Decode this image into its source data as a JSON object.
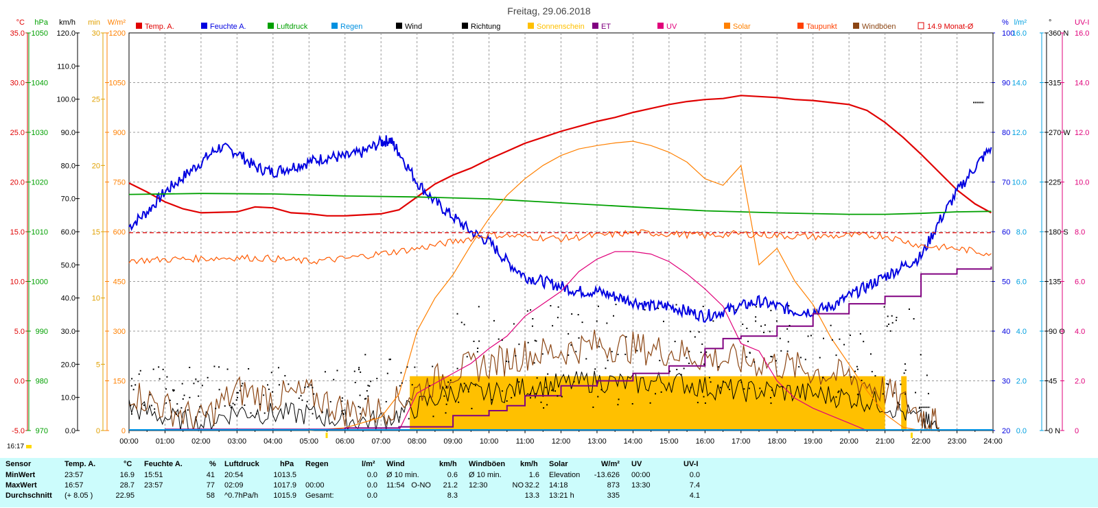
{
  "title": "Freitag, 29.06.2018",
  "clock": "16:17",
  "legend": [
    {
      "label": "Temp. A.",
      "color": "#e00000"
    },
    {
      "label": "Feuchte A.",
      "color": "#0000e0"
    },
    {
      "label": "Luftdruck",
      "color": "#00a000"
    },
    {
      "label": "Regen",
      "color": "#0090e0"
    },
    {
      "label": "Wind",
      "color": "#000000"
    },
    {
      "label": "Richtung",
      "color": "#000000"
    },
    {
      "label": "Sonnenschein",
      "color": "#ffc000"
    },
    {
      "label": "ET",
      "color": "#800080"
    },
    {
      "label": "UV",
      "color": "#e0007a"
    },
    {
      "label": "Solar",
      "color": "#ff8000"
    },
    {
      "label": "Taupunkt",
      "color": "#ff4000"
    },
    {
      "label": "Windböen",
      "color": "#8b4513"
    },
    {
      "label": "14.9 Monat-Ø",
      "color": "#e00000"
    }
  ],
  "axes": {
    "temp": {
      "unit": "°C",
      "color": "#e00000",
      "ticks": [
        "35.0",
        "30.0",
        "25.0",
        "20.0",
        "15.0",
        "10.0",
        "5.0",
        "0.0",
        "-5.0"
      ]
    },
    "hpa": {
      "unit": "hPa",
      "color": "#00a000",
      "ticks": [
        "1050",
        "1040",
        "1030",
        "1020",
        "1010",
        "1000",
        "990",
        "980",
        "970"
      ]
    },
    "kmh": {
      "unit": "km/h",
      "color": "#000000",
      "ticks": [
        "120.0",
        "110.0",
        "100.0",
        "90.0",
        "80.0",
        "70.0",
        "60.0",
        "50.0",
        "40.0",
        "30.0",
        "20.0",
        "10.0",
        "0.0"
      ]
    },
    "min": {
      "unit": "min",
      "color": "#e0a000",
      "ticks": [
        "30",
        "25",
        "20",
        "15",
        "10",
        "5",
        "0"
      ]
    },
    "wm2": {
      "unit": "W/m²",
      "color": "#ff8000",
      "ticks": [
        "1200",
        "1050",
        "900",
        "750",
        "600",
        "450",
        "300",
        "150",
        "0"
      ]
    },
    "pct": {
      "unit": "%",
      "color": "#0000e0",
      "ticks": [
        "100",
        "90",
        "80",
        "70",
        "60",
        "50",
        "40",
        "30",
        "20"
      ]
    },
    "lm2": {
      "unit": "l/m²",
      "color": "#00a0e0",
      "ticks": [
        "16.0",
        "14.0",
        "12.0",
        "10.0",
        "8.0",
        "6.0",
        "4.0",
        "2.0",
        "0.0"
      ]
    },
    "deg": {
      "unit": "°",
      "color": "#000000",
      "ticks": [
        "360 N",
        "315",
        "270 W",
        "225",
        "180 S",
        "135",
        "90 O",
        "45",
        "0 N"
      ]
    },
    "uvi": {
      "unit": "UV-I",
      "color": "#e0007a",
      "ticks": [
        "16.0",
        "14.0",
        "12.0",
        "10.0",
        "8.0",
        "6.0",
        "4.0",
        "2.0",
        "0"
      ]
    },
    "time": [
      "00:00",
      "01:00",
      "02:00",
      "03:00",
      "04:00",
      "05:00",
      "06:00",
      "07:00",
      "08:00",
      "09:00",
      "10:00",
      "11:00",
      "12:00",
      "13:00",
      "14:00",
      "15:00",
      "16:00",
      "17:00",
      "18:00",
      "19:00",
      "20:00",
      "21:00",
      "22:00",
      "23:00",
      "24:00"
    ]
  },
  "chart_data": {
    "type": "line",
    "title": "Freitag, 29.06.2018",
    "x_unit": "hours",
    "grid": true,
    "legend_position": "top",
    "series": [
      {
        "name": "Temp. A.",
        "unit": "°C",
        "x": [
          0,
          0.5,
          1,
          1.5,
          2,
          3,
          3.5,
          4,
          4.5,
          5,
          5.5,
          6,
          6.5,
          7,
          7.5,
          8,
          8.5,
          9,
          9.5,
          10,
          10.5,
          11,
          11.5,
          12,
          12.5,
          13,
          13.5,
          14,
          14.5,
          15,
          15.5,
          16,
          16.5,
          17,
          17.5,
          18,
          18.5,
          19,
          19.5,
          20,
          20.5,
          21,
          21.5,
          22,
          22.5,
          23,
          23.5,
          23.95
        ],
        "y": [
          19.9,
          19.0,
          18.0,
          17.3,
          16.9,
          17.0,
          17.5,
          17.4,
          16.9,
          16.8,
          16.6,
          16.6,
          16.7,
          16.8,
          17.2,
          18.5,
          19.8,
          20.7,
          21.4,
          22.3,
          23.1,
          23.9,
          24.5,
          25.1,
          25.6,
          26.1,
          26.5,
          27.0,
          27.4,
          27.8,
          28.1,
          28.3,
          28.4,
          28.7,
          28.6,
          28.5,
          28.3,
          28.2,
          28.0,
          27.8,
          27.2,
          26.0,
          24.5,
          22.8,
          21.0,
          19.2,
          17.8,
          16.9
        ]
      },
      {
        "name": "Feuchte A.",
        "unit": "%",
        "x": [
          0,
          0.5,
          1,
          1.5,
          2,
          2.5,
          3,
          3.5,
          4,
          4.5,
          5,
          5.5,
          6,
          6.5,
          7,
          7.25,
          7.5,
          8,
          8.5,
          9,
          9.5,
          10,
          10.5,
          11,
          11.5,
          12,
          12.5,
          13,
          13.5,
          14,
          14.5,
          15,
          15.5,
          16,
          16.5,
          17,
          17.5,
          18,
          18.5,
          19,
          19.5,
          20,
          20.5,
          21,
          21.5,
          22,
          22.5,
          23,
          23.5,
          23.95
        ],
        "y": [
          61,
          64,
          68,
          71,
          74,
          77,
          76,
          73,
          72,
          73,
          74,
          75,
          75,
          76,
          78,
          78.5,
          76,
          70,
          66,
          63,
          60,
          58,
          54,
          51,
          50,
          49,
          48,
          48,
          47,
          46,
          45,
          45,
          44,
          43,
          44,
          45,
          46,
          45,
          44,
          44,
          45,
          47,
          49,
          51,
          53,
          55,
          62,
          68,
          73,
          77
        ]
      },
      {
        "name": "Luftdruck",
        "unit": "hPa",
        "x": [
          0,
          2,
          4,
          6,
          8,
          10,
          12,
          14,
          16,
          18,
          20,
          21,
          22,
          23,
          23.95
        ],
        "y": [
          1017.5,
          1017.7,
          1017.6,
          1017.2,
          1017.0,
          1016.6,
          1015.8,
          1015.0,
          1014.2,
          1013.8,
          1013.5,
          1013.5,
          1013.7,
          1014.0,
          1014.1
        ]
      },
      {
        "name": "Wind",
        "unit": "km/h",
        "x": [
          0,
          1,
          2,
          3,
          4,
          5,
          6,
          7,
          8,
          9,
          10,
          11,
          12,
          13,
          14,
          15,
          16,
          17,
          18,
          19,
          20,
          21,
          22,
          22.5
        ],
        "y": [
          7,
          4,
          2,
          6,
          5,
          5,
          3,
          3,
          7,
          12,
          11,
          13,
          14,
          15,
          14,
          15,
          13,
          12,
          12,
          11,
          10,
          8,
          3,
          0.5
        ]
      },
      {
        "name": "Windböen",
        "unit": "km/h",
        "x": [
          0,
          1,
          2,
          3,
          4,
          5,
          6,
          7,
          8,
          9,
          10,
          11,
          12,
          13,
          14,
          15,
          16,
          17,
          18,
          19,
          20,
          21,
          22,
          22.5
        ],
        "y": [
          12,
          7,
          3,
          12,
          10,
          11,
          6,
          6,
          12,
          18,
          20,
          23,
          24,
          26,
          25,
          24,
          22,
          21,
          20,
          18,
          16,
          12,
          5,
          1
        ]
      },
      {
        "name": "Solar",
        "unit": "W/m²",
        "x": [
          5,
          6,
          7,
          7.5,
          8,
          8.5,
          9,
          9.5,
          10,
          10.5,
          11,
          11.5,
          12,
          12.5,
          13,
          13.5,
          14,
          14.5,
          15,
          15.5,
          16,
          16.5,
          17,
          17.5,
          18,
          18.5,
          19,
          19.5,
          20,
          20.5,
          21,
          21.5,
          22
        ],
        "y": [
          0,
          8,
          40,
          110,
          300,
          400,
          470,
          560,
          640,
          710,
          760,
          800,
          830,
          850,
          860,
          868,
          873,
          860,
          840,
          810,
          760,
          740,
          800,
          500,
          550,
          450,
          380,
          280,
          200,
          120,
          50,
          10,
          0
        ]
      },
      {
        "name": "Taupunkt",
        "unit": "°C",
        "x": [
          0,
          1,
          2,
          3,
          4,
          5,
          6,
          7,
          8,
          9,
          10,
          11,
          12,
          13,
          14,
          15,
          16,
          17,
          18,
          19,
          20,
          21,
          22,
          23,
          23.95
        ],
        "y": [
          12.1,
          12.2,
          12.3,
          12.4,
          12.3,
          12.0,
          12.3,
          12.8,
          13.3,
          14.0,
          14.7,
          14.5,
          14.3,
          14.6,
          14.9,
          14.8,
          14.6,
          14.8,
          14.6,
          14.5,
          14.6,
          14.6,
          13.6,
          13.3,
          12.8
        ]
      },
      {
        "name": "UV",
        "unit": "UV-I",
        "x": [
          7.5,
          8,
          8.5,
          9,
          9.5,
          10,
          10.5,
          11,
          11.5,
          12,
          12.5,
          13,
          13.5,
          14,
          14.5,
          15,
          15.5,
          16,
          16.5,
          17,
          17.5,
          18,
          18.5,
          19,
          19.5,
          20,
          20.5
        ],
        "y": [
          0,
          1.5,
          1.9,
          2.3,
          2.7,
          3.3,
          3.8,
          4.6,
          5.1,
          5.6,
          6.4,
          6.9,
          7.2,
          7.2,
          7.1,
          6.8,
          6.3,
          5.7,
          5.0,
          3.5,
          3.2,
          2.0,
          1.3,
          0.9,
          0.6,
          0.3,
          0
        ]
      },
      {
        "name": "ET",
        "unit": "l/m²",
        "x": [
          1,
          6,
          7.5,
          9,
          10,
          10.5,
          11,
          12,
          13,
          14,
          15,
          16,
          16.5,
          17,
          18,
          19,
          20,
          21,
          22,
          23,
          23.95
        ],
        "y": [
          0.05,
          0.1,
          0.15,
          0.6,
          0.8,
          1.0,
          1.4,
          1.8,
          2.0,
          2.3,
          2.6,
          3.3,
          3.7,
          3.8,
          4.2,
          4.7,
          5.1,
          5.4,
          6.3,
          6.5,
          6.6
        ]
      },
      {
        "name": "14.9 Monat-Ø",
        "unit": "°C",
        "x": [
          0,
          24
        ],
        "y": [
          14.9,
          14.9
        ]
      }
    ],
    "sunshine": {
      "name": "Sonnenschein",
      "unit": "min",
      "start": 7.8,
      "end": 21.0,
      "value": 4.1,
      "extra": [
        21.45,
        21.6
      ]
    }
  },
  "summary": {
    "header": {
      "sensor": "Sensor",
      "temp": "Temp. A.",
      "temp_unit": "°C",
      "hum": "Feuchte A.",
      "hum_unit": "%",
      "press": "Luftdruck",
      "press_unit": "hPa",
      "rain": "Regen",
      "rain_unit": "l/m²",
      "wind": "Wind",
      "wind_unit": "km/h",
      "gust": "Windböen",
      "gust_unit": "km/h",
      "solar": "Solar",
      "solar_unit": "W/m²",
      "uv": "UV",
      "uv_unit": "UV-I"
    },
    "rows": [
      {
        "label": "MinWert",
        "temp_t": "23:57",
        "temp_v": "16.9",
        "hum_t": "15:51",
        "hum_v": "41",
        "press_t": "20:54",
        "press_v": "1013.5",
        "rain_t": "",
        "rain_v": "0.0",
        "wind_t": "Ø 10 min.",
        "wind_dir": "",
        "wind_v": "0.6",
        "gust_t": "Ø 10 min.",
        "gust_dir": "",
        "gust_v": "1.6",
        "solar_t": "Elevation",
        "solar_v": "-13.626",
        "uv_t": "00:00",
        "uv_v": "0.0"
      },
      {
        "label": "MaxWert",
        "temp_t": "16:57",
        "temp_v": "28.7",
        "hum_t": "23:57",
        "hum_v": "77",
        "press_t": "02:09",
        "press_v": "1017.9",
        "rain_t": "00:00",
        "rain_v": "0.0",
        "wind_t": "11:54",
        "wind_dir": "O-NO",
        "wind_v": "21.2",
        "gust_t": "12:30",
        "gust_dir": "NO",
        "gust_v": "32.2",
        "solar_t": "14:18",
        "solar_v": "873",
        "uv_t": "13:30",
        "uv_v": "7.4"
      },
      {
        "label": "Durchschnitt",
        "temp_t": "(+ 8.05 )",
        "temp_v": "22.95",
        "hum_t": "",
        "hum_v": "58",
        "press_t": "^0.7hPa/h",
        "press_v": "1015.9",
        "rain_t": "Gesamt:",
        "rain_v": "0.0",
        "wind_t": "",
        "wind_dir": "",
        "wind_v": "8.3",
        "gust_t": "",
        "gust_dir": "",
        "gust_v": "13.3",
        "solar_t": "13:21 h",
        "solar_v": "335",
        "uv_t": "",
        "uv_v": "4.1"
      }
    ]
  }
}
